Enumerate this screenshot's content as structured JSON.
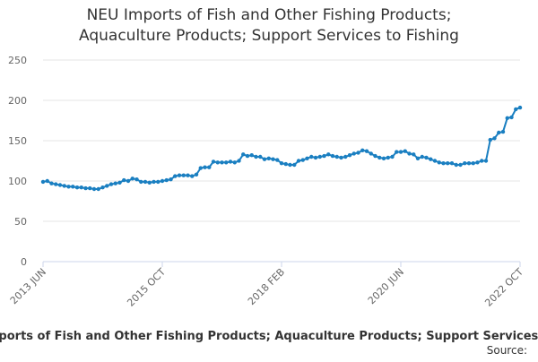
{
  "chart_data": {
    "type": "line",
    "title": [
      "NEU Imports of Fish and Other Fishing Products;",
      "Aquaculture Products; Support Services to Fishing"
    ],
    "footer": "Imports of Fish and Other Fishing Products; Aquaculture Products; Support Services to",
    "source": "Source:",
    "categories": [
      "2013 JUN",
      null,
      null,
      null,
      null,
      null,
      null,
      null,
      null,
      null,
      null,
      null,
      null,
      null,
      null,
      null,
      null,
      null,
      null,
      null,
      null,
      null,
      null,
      null,
      null,
      null,
      null,
      null,
      "2015 OCT",
      null,
      null,
      null,
      null,
      null,
      null,
      null,
      null,
      null,
      null,
      null,
      null,
      null,
      null,
      null,
      null,
      null,
      null,
      null,
      null,
      null,
      null,
      null,
      null,
      null,
      null,
      null,
      "2018 FEB",
      null,
      null,
      null,
      null,
      null,
      null,
      null,
      null,
      null,
      null,
      null,
      null,
      null,
      null,
      null,
      null,
      null,
      null,
      null,
      null,
      null,
      null,
      null,
      null,
      null,
      null,
      null,
      "2020 JUN",
      null,
      null,
      null,
      null,
      null,
      null,
      null,
      null,
      null,
      null,
      null,
      null,
      null,
      null,
      null,
      null,
      null,
      null,
      null,
      null,
      null,
      null,
      null,
      null,
      null,
      null,
      null,
      "2022 OCT"
    ],
    "series": [
      {
        "color": "#1a7fc1",
        "values": [
          99,
          100,
          97,
          96,
          95,
          94,
          93,
          93,
          92,
          92,
          91,
          91,
          90,
          90,
          92,
          94,
          96,
          97,
          98,
          101,
          100,
          103,
          102,
          99,
          99,
          98,
          99,
          99,
          100,
          101,
          102,
          106,
          107,
          107,
          107,
          106,
          108,
          116,
          117,
          117,
          124,
          123,
          123,
          123,
          124,
          123,
          125,
          133,
          131,
          132,
          130,
          130,
          127,
          128,
          127,
          126,
          122,
          121,
          120,
          120,
          125,
          126,
          128,
          130,
          129,
          130,
          131,
          133,
          131,
          130,
          129,
          130,
          132,
          134,
          135,
          138,
          137,
          134,
          131,
          129,
          128,
          129,
          130,
          136,
          136,
          137,
          134,
          133,
          128,
          130,
          129,
          127,
          125,
          123,
          122,
          122,
          122,
          120,
          120,
          122,
          122,
          122,
          123,
          125,
          125,
          151,
          153,
          160,
          161,
          178,
          179,
          189,
          191
        ]
      }
    ],
    "ylim": [
      0,
      250
    ],
    "yticks": [
      0,
      50,
      100,
      150,
      200,
      250
    ],
    "grid": true
  }
}
